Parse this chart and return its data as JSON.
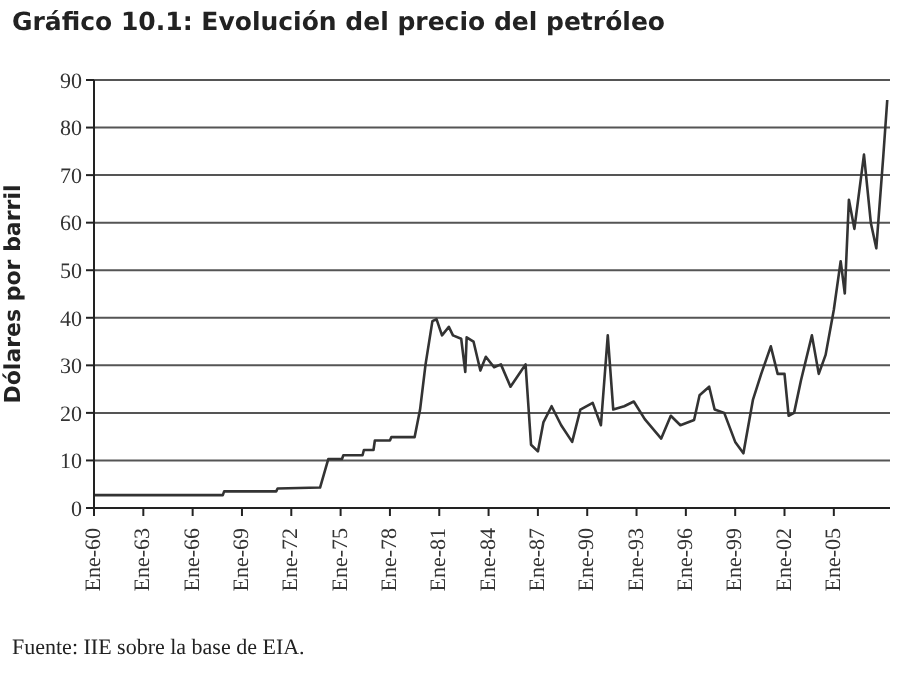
{
  "chart_data": {
    "type": "line",
    "title": "Gráfico 10.1: Evolución del precio del petróleo",
    "ylabel": "Dólares por barril",
    "annotations": [
      "Fuente: IIE sobre la base de EIA."
    ],
    "x": [
      "1960-01",
      "1967-11",
      "1967-12",
      "1971-02",
      "1971-03",
      "1973-10",
      "1974-04",
      "1975-02",
      "1975-03",
      "1976-05",
      "1976-06",
      "1977-01",
      "1977-02",
      "1978-01",
      "1978-02",
      "1979-07",
      "1979-11",
      "1980-03",
      "1980-08",
      "1980-11",
      "1981-03",
      "1981-08",
      "1981-11",
      "1982-05",
      "1982-08",
      "1982-09",
      "1983-02",
      "1983-07",
      "1983-11",
      "1984-05",
      "1984-10",
      "1985-05",
      "1986-01",
      "1986-04",
      "1986-08",
      "1987-01",
      "1987-05",
      "1987-11",
      "1988-06",
      "1989-02",
      "1989-08",
      "1990-05",
      "1990-11",
      "1991-04",
      "1991-08",
      "1992-04",
      "1992-11",
      "1993-07",
      "1994-07",
      "1995-02",
      "1995-09",
      "1996-07",
      "1996-11",
      "1997-06",
      "1997-10",
      "1998-05",
      "1999-01",
      "1999-07",
      "2000-02",
      "2000-08",
      "2001-03",
      "2001-08",
      "2002-01",
      "2002-04",
      "2002-08",
      "2003-01",
      "2003-09",
      "2004-02",
      "2004-07",
      "2005-01",
      "2005-06",
      "2005-09",
      "2005-12",
      "2006-04",
      "2006-11",
      "2007-04",
      "2007-08",
      "2008-01",
      "2008-04"
    ],
    "series": [
      {
        "color": "#333333",
        "values": [
          2.7,
          2.7,
          3.5,
          3.5,
          4.1,
          4.3,
          10.3,
          10.3,
          11.1,
          11.1,
          12.2,
          12.2,
          14.2,
          14.2,
          14.9,
          14.9,
          20.7,
          30.2,
          39.3,
          39.7,
          36.3,
          38.1,
          36.3,
          35.6,
          28.6,
          35.9,
          35,
          28.9,
          31.8,
          29.6,
          30.2,
          25.5,
          28.9,
          30.2,
          13.3,
          11.9,
          18,
          21.4,
          17.4,
          13.9,
          20.7,
          22.1,
          17.4,
          36.3,
          20.7,
          21.4,
          22.4,
          18.7,
          14.6,
          19.4,
          17.4,
          18.5,
          23.7,
          25.5,
          20.7,
          20,
          13.9,
          11.5,
          22.8,
          28.2,
          34,
          28.2,
          28.2,
          19.4,
          20,
          26.8,
          36.3,
          28.2,
          32.2,
          41.7,
          51.9,
          45.1,
          64.8,
          58.7,
          74.3,
          60,
          54.6,
          73.6,
          85.8
        ]
      }
    ],
    "xlim": [
      "1960-01",
      "2008-06"
    ],
    "xticks": [
      {
        "value": "1960-01",
        "label": "Ene-60"
      },
      {
        "value": "1963-01",
        "label": "Ene-63"
      },
      {
        "value": "1966-01",
        "label": "Ene-66"
      },
      {
        "value": "1969-01",
        "label": "Ene-69"
      },
      {
        "value": "1972-01",
        "label": "Ene-72"
      },
      {
        "value": "1975-01",
        "label": "Ene-75"
      },
      {
        "value": "1978-01",
        "label": "Ene-78"
      },
      {
        "value": "1981-01",
        "label": "Ene-81"
      },
      {
        "value": "1984-01",
        "label": "Ene-84"
      },
      {
        "value": "1987-01",
        "label": "Ene-87"
      },
      {
        "value": "1990-01",
        "label": "Ene-90"
      },
      {
        "value": "1993-01",
        "label": "Ene-93"
      },
      {
        "value": "1996-01",
        "label": "Ene-96"
      },
      {
        "value": "1999-01",
        "label": "Ene-99"
      },
      {
        "value": "2002-01",
        "label": "Ene-02"
      },
      {
        "value": "2005-01",
        "label": "Ene-05"
      }
    ],
    "ylim": [
      0,
      90
    ],
    "yticks": [
      0,
      10,
      20,
      30,
      40,
      50,
      60,
      70,
      80,
      90
    ],
    "grid": "y",
    "legend": false,
    "marker": "none",
    "line_style": "solid"
  }
}
